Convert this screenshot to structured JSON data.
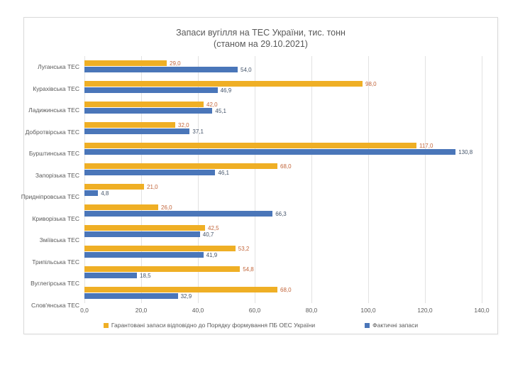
{
  "title": {
    "line1": "Запаси вугілля на ТЕС України, тис. тонн",
    "line2": "(станом на 29.10.2021)"
  },
  "chart_data": {
    "type": "bar",
    "orientation": "horizontal",
    "title": "Запаси вугілля на ТЕС України, тис. тонн (станом на 29.10.2021)",
    "xlim": [
      0,
      140
    ],
    "grid": true,
    "legend_position": "bottom",
    "x_tick_values": [
      0,
      20,
      40,
      60,
      80,
      100,
      120,
      140
    ],
    "x_tick_labels": [
      "0,0",
      "20,0",
      "40,0",
      "60,0",
      "80,0",
      "100,0",
      "120,0",
      "140,0"
    ],
    "categories": [
      "Луганська ТЕС",
      "Курахівська ТЕС",
      "Ладижинська ТЕС",
      "Добротвірська ТЕС",
      "Бурштинська ТЕС",
      "Запорізька ТЕС",
      "Придніпровська ТЕС",
      "Криворізька ТЕС",
      "Зміївська ТЕС",
      "Трипільська ТЕС",
      "Вуглегірська ТЕС",
      "Слов'янська ТЕС"
    ],
    "series": [
      {
        "name": "Гарантовані запаси відповідно до Порядку формування ПБ ОЕС України",
        "color": "#efaf25",
        "label_color": "#c2653a",
        "values": [
          29.0,
          98.0,
          42.0,
          32.0,
          117.0,
          68.0,
          21.0,
          26.0,
          42.5,
          53.2,
          54.8,
          68.0
        ],
        "labels": [
          "29,0",
          "98,0",
          "42,0",
          "32,0",
          "117,0",
          "68,0",
          "21,0",
          "26,0",
          "42,5",
          "53,2",
          "54,8",
          "68,0"
        ]
      },
      {
        "name": "Фактичні запаси",
        "color": "#4a76b9",
        "label_color": "#44546a",
        "values": [
          54.0,
          46.9,
          45.1,
          37.1,
          130.8,
          46.1,
          4.8,
          66.3,
          40.7,
          41.9,
          18.5,
          32.9
        ],
        "labels": [
          "54,0",
          "46,9",
          "45,1",
          "37,1",
          "130,8",
          "46,1",
          "4,8",
          "66,3",
          "40,7",
          "41,9",
          "18,5",
          "32,9"
        ]
      }
    ]
  }
}
